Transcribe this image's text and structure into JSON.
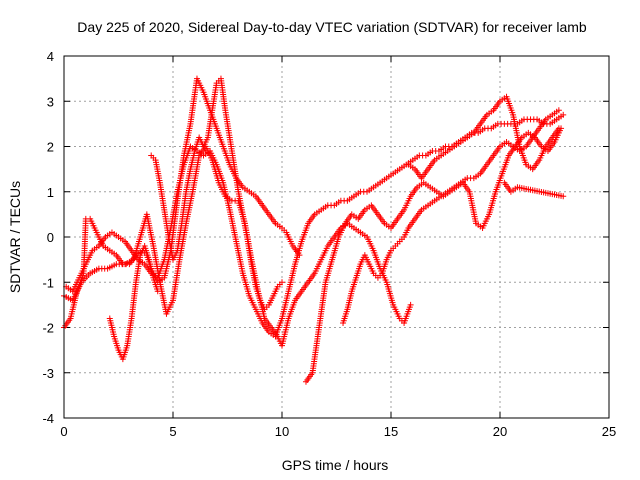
{
  "chart_data": {
    "type": "scatter",
    "title": "Day 225 of 2020, Sidereal Day-to-day VTEC variation (SDTVAR) for receiver lamb",
    "xlabel": "GPS time / hours",
    "ylabel": "SDTVAR / TECUs",
    "xlim": [
      0,
      25
    ],
    "ylim": [
      -4,
      4
    ],
    "x_ticks": [
      "0",
      "5",
      "10",
      "15",
      "20",
      "25"
    ],
    "y_ticks": [
      "-4",
      "-3",
      "-2",
      "-1",
      "0",
      "1",
      "2",
      "3",
      "4"
    ],
    "grid": true,
    "marker": "+",
    "color": "#ff0000",
    "series": [
      {
        "x": [
          0.0,
          0.3,
          0.6,
          0.9,
          1.0,
          1.2,
          1.5,
          1.8,
          2.1,
          2.4,
          2.7,
          3.0,
          3.3,
          3.6,
          3.8,
          4.0,
          4.3,
          4.6,
          4.9,
          5.2,
          5.5,
          5.8,
          6.1,
          6.4,
          6.7,
          7.0,
          7.3,
          7.6,
          7.9,
          8.2,
          8.5,
          8.8,
          9.1,
          9.4,
          9.7,
          10.0,
          10.2,
          10.5,
          10.8
        ],
        "y": [
          -2.0,
          -1.8,
          -1.2,
          -0.8,
          0.4,
          0.4,
          0.1,
          -0.2,
          -0.3,
          -0.4,
          -0.6,
          -0.6,
          -0.4,
          -0.3,
          -0.4,
          -0.7,
          -1.0,
          -0.9,
          -0.3,
          0.8,
          1.8,
          2.5,
          3.5,
          3.2,
          2.8,
          2.4,
          2.0,
          1.6,
          1.3,
          1.1,
          1.0,
          0.9,
          0.7,
          0.5,
          0.3,
          0.2,
          0.1,
          -0.2,
          -0.4
        ]
      },
      {
        "x": [
          0.0,
          0.4,
          0.8,
          1.2,
          1.6,
          2.0,
          2.4,
          2.8,
          3.2,
          3.5,
          3.8,
          4.1,
          4.4,
          4.7,
          5.0,
          5.3,
          5.6,
          5.9,
          6.2,
          6.5,
          6.8,
          7.1,
          7.4,
          7.7,
          8.0,
          8.3,
          8.6,
          8.9,
          9.2,
          9.5,
          9.8,
          10.0,
          10.3,
          10.6,
          10.9,
          11.2,
          11.5,
          11.8,
          12.1,
          12.4,
          12.7,
          13.0,
          13.3,
          13.6,
          13.9,
          14.2,
          14.5,
          14.8,
          15.1,
          15.4,
          15.6,
          15.9
        ],
        "y": [
          -1.3,
          -1.4,
          -1.0,
          -0.8,
          -0.7,
          -0.7,
          -0.6,
          -0.6,
          -0.5,
          0.0,
          0.5,
          -0.2,
          -1.0,
          -1.7,
          -1.4,
          -0.5,
          0.3,
          1.0,
          1.8,
          2.0,
          1.7,
          1.2,
          0.9,
          0.8,
          0.8,
          0.3,
          -0.5,
          -1.2,
          -1.8,
          -2.0,
          -2.2,
          -2.4,
          -1.8,
          -1.4,
          -1.2,
          -1.0,
          -0.8,
          -0.5,
          -0.2,
          0.0,
          0.2,
          0.3,
          0.2,
          0.1,
          0.0,
          -0.3,
          -0.7,
          -1.0,
          -1.5,
          -1.8,
          -1.9,
          -1.5
        ]
      },
      {
        "x": [
          0.1,
          0.4,
          0.7,
          1.0,
          1.3,
          1.6,
          1.9,
          2.2,
          2.5,
          2.8,
          3.1,
          3.4,
          3.7,
          4.0,
          4.3,
          4.6,
          4.9,
          5.2,
          5.5,
          5.8,
          6.1,
          6.4,
          6.7,
          7.0,
          7.3,
          7.6,
          7.9,
          8.2,
          8.5,
          8.8,
          9.1,
          9.4,
          9.7,
          10.0,
          10.3,
          10.6,
          10.9,
          11.2,
          11.5,
          11.8,
          12.1,
          12.4,
          12.7,
          13.0,
          13.3,
          13.6,
          13.9,
          14.2,
          14.5,
          14.8,
          15.1,
          15.4,
          15.7,
          16.0,
          16.3,
          16.6,
          16.9,
          17.2,
          17.5,
          17.8,
          18.1,
          18.4,
          18.7,
          19.0,
          19.3,
          19.6,
          19.9,
          20.2,
          20.5,
          20.8,
          21.1,
          21.4,
          21.7,
          22.0,
          22.3,
          22.6,
          22.9
        ],
        "y": [
          -1.1,
          -1.2,
          -0.9,
          -0.6,
          -0.3,
          -0.2,
          0.0,
          0.1,
          0.0,
          -0.1,
          -0.3,
          -0.5,
          -0.6,
          -0.8,
          -0.9,
          -0.5,
          0.2,
          1.0,
          1.6,
          2.0,
          1.9,
          1.8,
          1.9,
          1.6,
          1.2,
          0.6,
          -0.1,
          -0.8,
          -1.3,
          -1.6,
          -1.9,
          -2.1,
          -2.2,
          -1.8,
          -1.2,
          -0.6,
          -0.1,
          0.3,
          0.5,
          0.6,
          0.7,
          0.7,
          0.8,
          0.8,
          0.9,
          1.0,
          1.0,
          1.1,
          1.2,
          1.3,
          1.4,
          1.5,
          1.6,
          1.7,
          1.8,
          1.8,
          1.9,
          1.9,
          2.0,
          2.0,
          2.1,
          2.2,
          2.3,
          2.3,
          2.4,
          2.4,
          2.5,
          2.5,
          2.5,
          2.5,
          2.6,
          2.6,
          2.6,
          2.5,
          2.5,
          2.6,
          2.7
        ]
      },
      {
        "x": [
          2.1,
          2.3,
          2.5,
          2.7,
          2.9,
          3.1,
          3.3,
          3.5,
          3.7,
          3.9,
          4.1,
          4.3
        ],
        "y": [
          -1.8,
          -2.2,
          -2.5,
          -2.7,
          -2.4,
          -1.8,
          -1.0,
          -0.4,
          -0.2,
          -0.5,
          -0.9,
          -1.2
        ]
      },
      {
        "x": [
          4.0,
          4.2,
          4.4,
          4.6,
          4.8,
          5.0,
          5.2,
          5.4,
          5.6,
          5.8,
          6.0,
          6.2,
          6.4,
          6.6,
          6.8,
          7.0,
          7.2,
          7.4,
          7.6,
          7.8,
          8.0,
          8.2,
          8.4,
          8.6,
          8.8,
          9.0,
          9.2,
          9.4,
          9.6,
          9.8,
          10.0
        ],
        "y": [
          1.8,
          1.7,
          1.2,
          0.6,
          0.0,
          -0.5,
          -0.3,
          0.3,
          1.0,
          1.5,
          1.9,
          2.2,
          2.0,
          2.2,
          2.8,
          3.4,
          3.5,
          2.8,
          2.2,
          1.6,
          1.0,
          0.5,
          0.0,
          -0.6,
          -1.1,
          -1.4,
          -1.6,
          -1.5,
          -1.3,
          -1.1,
          -1.0
        ]
      },
      {
        "x": [
          11.1,
          11.4,
          11.7,
          12.0,
          12.3,
          12.6,
          12.9,
          13.2,
          13.5,
          13.8,
          14.1,
          14.4,
          14.7,
          15.0,
          15.3,
          15.6,
          15.9,
          16.2,
          16.5,
          16.8,
          17.1,
          17.4,
          17.7,
          18.0,
          18.3,
          18.6,
          18.9,
          19.2,
          19.5,
          19.8,
          20.1,
          20.4,
          20.7,
          21.0,
          21.3,
          21.6,
          21.9,
          22.2,
          22.5,
          22.8
        ],
        "y": [
          -3.2,
          -3.0,
          -2.0,
          -1.0,
          -0.5,
          0.0,
          0.3,
          0.5,
          0.4,
          0.6,
          0.7,
          0.5,
          0.3,
          0.2,
          0.4,
          0.6,
          0.9,
          1.1,
          1.2,
          1.1,
          1.0,
          0.9,
          1.0,
          1.1,
          1.2,
          1.0,
          0.3,
          0.2,
          0.5,
          1.0,
          1.4,
          1.8,
          2.0,
          2.2,
          2.3,
          2.2,
          2.0,
          1.9,
          2.1,
          2.4
        ]
      },
      {
        "x": [
          12.8,
          13.0,
          13.2,
          13.4,
          13.6,
          13.8,
          14.0,
          14.2,
          14.4,
          14.6,
          14.8,
          15.0,
          15.2,
          15.4,
          15.6,
          15.8,
          16.1,
          16.4,
          16.7,
          17.0,
          17.3,
          17.6,
          17.9,
          18.2,
          18.5,
          18.8,
          19.1,
          19.4,
          19.7,
          20.0,
          20.3,
          20.6,
          20.9,
          21.2,
          21.5,
          21.8,
          22.1,
          22.4,
          22.7
        ],
        "y": [
          -1.9,
          -1.6,
          -1.2,
          -0.9,
          -0.6,
          -0.4,
          -0.6,
          -0.8,
          -0.9,
          -0.8,
          -0.5,
          -0.3,
          -0.2,
          -0.1,
          0.0,
          0.2,
          0.4,
          0.6,
          0.7,
          0.8,
          0.9,
          1.0,
          1.1,
          1.2,
          1.3,
          1.3,
          1.4,
          1.6,
          1.8,
          2.0,
          2.1,
          2.0,
          1.9,
          2.0,
          2.2,
          2.4,
          2.6,
          2.7,
          2.8
        ]
      },
      {
        "x": [
          15.8,
          16.1,
          16.4,
          16.7,
          17.0,
          17.3,
          17.6,
          17.9,
          18.2,
          18.5,
          18.8,
          19.1,
          19.4,
          19.7,
          20.0,
          20.3,
          20.6,
          20.9,
          21.2,
          21.5,
          21.8,
          22.1,
          22.4,
          22.7
        ],
        "y": [
          1.6,
          1.5,
          1.3,
          1.5,
          1.7,
          1.8,
          1.9,
          2.0,
          2.1,
          2.2,
          2.3,
          2.5,
          2.7,
          2.8,
          3.0,
          3.1,
          2.7,
          2.0,
          1.6,
          1.5,
          1.7,
          2.0,
          2.2,
          2.4
        ]
      },
      {
        "x": [
          20.2,
          20.5,
          20.8,
          22.9
        ],
        "y": [
          1.2,
          1.0,
          1.1,
          0.9
        ]
      }
    ]
  }
}
